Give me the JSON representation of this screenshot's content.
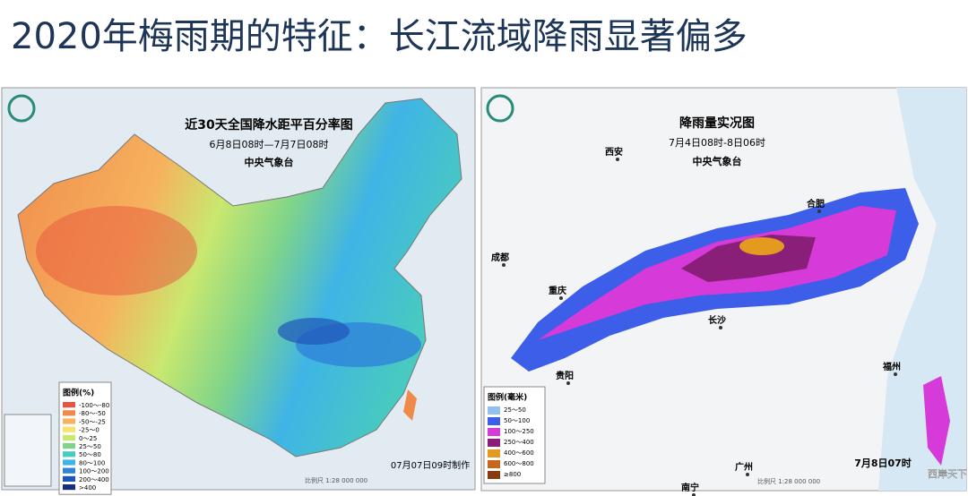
{
  "title": "2020年梅雨期的特征：长江流域降雨显著偏多",
  "left_map": {
    "title": "近30天全国降水距平百分率图",
    "subtitle": "6月8日08时—7月7日08时",
    "agency": "中央气象台",
    "legend_title": "图例(%)",
    "legend": [
      {
        "label": "-100～-80",
        "color": "#e8553c"
      },
      {
        "label": "-80～-50",
        "color": "#f08a4b"
      },
      {
        "label": "-50～-25",
        "color": "#f6b25e"
      },
      {
        "label": "-25～0",
        "color": "#f7e36a"
      },
      {
        "label": "0～25",
        "color": "#c9e86f"
      },
      {
        "label": "25～50",
        "color": "#7fd48a"
      },
      {
        "label": "50～80",
        "color": "#48c9c1"
      },
      {
        "label": "80～100",
        "color": "#3fb4e6"
      },
      {
        "label": "100～200",
        "color": "#2f83d8"
      },
      {
        "label": "200～400",
        "color": "#1f55b8"
      },
      {
        "label": ">400",
        "color": "#16307e"
      }
    ],
    "scale": "比例尺 1:28 000 000",
    "footer": "07月07日09时制作"
  },
  "right_map": {
    "title": "降雨量实况图",
    "subtitle": "7月4日08时-8日06时",
    "agency": "中央气象台",
    "legend_title": "图例(毫米)",
    "legend": [
      {
        "label": "25～50",
        "color": "#8fc0f0"
      },
      {
        "label": "50～100",
        "color": "#3c5ee8"
      },
      {
        "label": "100～250",
        "color": "#d63ad8"
      },
      {
        "label": "250～400",
        "color": "#8a1f7a"
      },
      {
        "label": "400～600",
        "color": "#e49a1e"
      },
      {
        "label": "600～800",
        "color": "#c8661a"
      },
      {
        "label": "≥800",
        "color": "#8a3a10"
      }
    ],
    "cities": [
      "西安",
      "合肥",
      "成都",
      "重庆",
      "长沙",
      "贵阳",
      "福州",
      "南宁",
      "广州"
    ],
    "scale": "比例尺 1:28 000 000",
    "footer": "7月8日07时",
    "watermark": "西岸天下"
  }
}
